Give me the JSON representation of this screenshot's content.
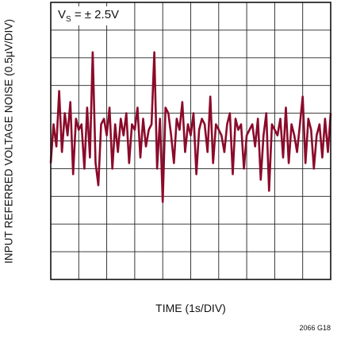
{
  "chart_data": {
    "type": "line",
    "title": "",
    "xlabel": "TIME (1s/DIV)",
    "ylabel": "INPUT REFERRED VOLTAGE NOISE (0.5µV/DIV)",
    "annotation": {
      "main": "V",
      "sub": "S",
      "rest": " = ± 2.5V"
    },
    "figure_id": "2066 G18",
    "grid": true,
    "x_divisions": 10,
    "y_divisions": 10,
    "xlim": [
      0,
      10
    ],
    "ylim": [
      -2.5,
      2.5
    ],
    "series_color": "#8b0a2a",
    "series": [
      {
        "x": [
          0,
          0.1,
          0.2,
          0.3,
          0.4,
          0.5,
          0.6,
          0.7,
          0.8,
          0.9,
          1,
          1.1,
          1.2,
          1.3,
          1.4,
          1.5,
          1.6,
          1.7,
          1.8,
          1.9,
          2,
          2.1,
          2.2,
          2.3,
          2.4,
          2.5,
          2.6,
          2.7,
          2.8,
          2.9,
          3,
          3.1,
          3.2,
          3.3,
          3.4,
          3.5,
          3.6,
          3.7,
          3.8,
          3.9,
          4,
          4.1,
          4.2,
          4.3,
          4.4,
          4.5,
          4.6,
          4.7,
          4.8,
          4.9,
          5,
          5.1,
          5.2,
          5.3,
          5.4,
          5.5,
          5.6,
          5.7,
          5.8,
          5.9,
          6,
          6.1,
          6.2,
          6.3,
          6.4,
          6.5,
          6.6,
          6.7,
          6.8,
          6.9,
          7,
          7.1,
          7.2,
          7.3,
          7.4,
          7.5,
          7.6,
          7.7,
          7.8,
          7.9,
          8,
          8.1,
          8.2,
          8.3,
          8.4,
          8.5,
          8.6,
          8.7,
          8.8,
          8.9,
          9,
          9.1,
          9.2,
          9.3,
          9.4,
          9.5,
          9.6,
          9.7,
          9.8,
          9.9,
          10
        ],
        "y": [
          -0.4,
          0.3,
          -0.1,
          0.9,
          -0.2,
          0.5,
          0.1,
          0.7,
          -0.6,
          0.4,
          0.2,
          0.3,
          -0.5,
          0.6,
          -0.3,
          1.6,
          -0.4,
          -0.8,
          0.3,
          0.4,
          0.1,
          0.6,
          -0.5,
          0.3,
          -0.2,
          0.4,
          0.1,
          0.5,
          -0.4,
          0.3,
          0.2,
          0.6,
          -0.3,
          0.4,
          -0.1,
          0.2,
          0.3,
          1.6,
          -0.5,
          0.4,
          -1.1,
          0.6,
          0.5,
          0.1,
          -0.4,
          0.4,
          0.2,
          0.7,
          -0.2,
          0.3,
          0.1,
          0.5,
          -0.6,
          0.2,
          0.4,
          0.3,
          -0.2,
          0.8,
          -0.4,
          0.3,
          0.2,
          0.1,
          -0.2,
          0.3,
          0.5,
          -0.6,
          0.4,
          0.2,
          0.3,
          -0.5,
          0.1,
          0.2,
          0.3,
          -0.1,
          0.4,
          -0.7,
          0.1,
          0.5,
          -0.9,
          0.3,
          0.2,
          0.1,
          0.4,
          -0.3,
          0.6,
          -0.4,
          0.3,
          0.1,
          -0.2,
          0.3,
          0.8,
          -0.4,
          0.4,
          0.2,
          -0.5,
          0.1,
          0.3,
          -0.3,
          0.4,
          -0.2,
          0.5
        ]
      }
    ]
  }
}
